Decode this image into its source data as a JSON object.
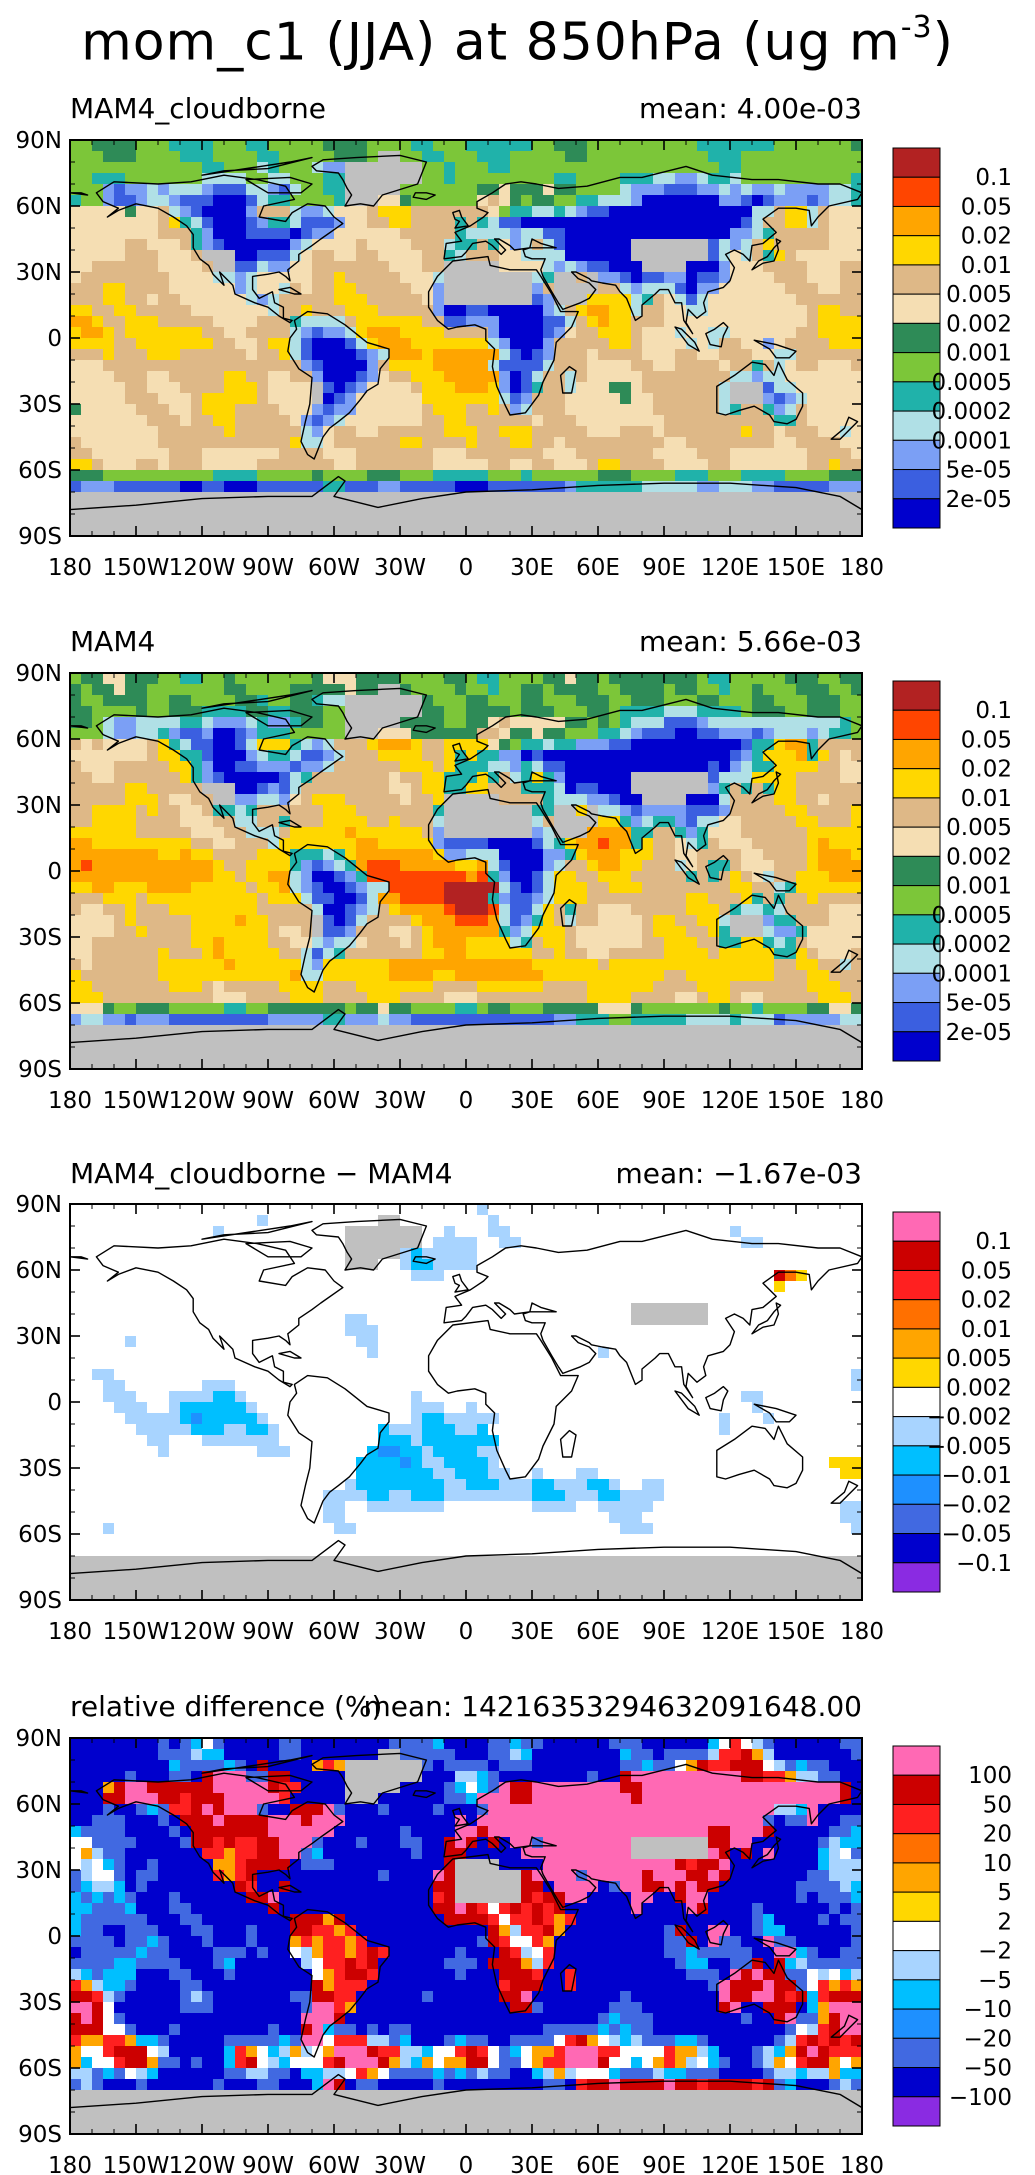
{
  "page": {
    "title": "mom_c1 (JJA) at 850hPa (ug m",
    "title_sup": "-3",
    "title_end": ")"
  },
  "colors": {
    "land_gray": "#c0c0c0",
    "coast": "#000000"
  },
  "chart_data": [
    {
      "type": "heatmap",
      "title": "MAM4_cloudborne",
      "mean_label": "mean: 4.00e-03",
      "xlim": [
        -180,
        180
      ],
      "ylim": [
        -90,
        90
      ],
      "x_ticks": [
        "180",
        "150W",
        "120W",
        "90W",
        "60W",
        "30W",
        "0",
        "30E",
        "60E",
        "90E",
        "120E",
        "150E",
        "180"
      ],
      "y_ticks": [
        "90N",
        "60N",
        "30N",
        "0",
        "30S",
        "60S",
        "90S"
      ],
      "colorbar": {
        "labels": [
          "0.1",
          "0.05",
          "0.02",
          "0.01",
          "0.005",
          "0.002",
          "0.001",
          "0.0005",
          "0.0002",
          "0.0001",
          "5e-05",
          "2e-05"
        ],
        "colors": [
          "#b22222",
          "#ff4500",
          "#ffa500",
          "#ffd700",
          "#deb887",
          "#f5deb3",
          "#2e8b57",
          "#7cc639",
          "#20b2aa",
          "#b0e0e6",
          "#7b9ff5",
          "#3b5fe0",
          "#0000cd"
        ]
      },
      "field_pattern": "abs_cb"
    },
    {
      "type": "heatmap",
      "title": "MAM4",
      "mean_label": "mean: 5.66e-03",
      "xlim": [
        -180,
        180
      ],
      "ylim": [
        -90,
        90
      ],
      "x_ticks": [
        "180",
        "150W",
        "120W",
        "90W",
        "60W",
        "30W",
        "0",
        "30E",
        "60E",
        "90E",
        "120E",
        "150E",
        "180"
      ],
      "y_ticks": [
        "90N",
        "60N",
        "30N",
        "0",
        "30S",
        "60S",
        "90S"
      ],
      "colorbar": {
        "labels": [
          "0.1",
          "0.05",
          "0.02",
          "0.01",
          "0.005",
          "0.002",
          "0.001",
          "0.0005",
          "0.0002",
          "0.0001",
          "5e-05",
          "2e-05"
        ],
        "colors": [
          "#b22222",
          "#ff4500",
          "#ffa500",
          "#ffd700",
          "#deb887",
          "#f5deb3",
          "#2e8b57",
          "#7cc639",
          "#20b2aa",
          "#b0e0e6",
          "#7b9ff5",
          "#3b5fe0",
          "#0000cd"
        ]
      },
      "field_pattern": "abs_mam4"
    },
    {
      "type": "heatmap",
      "title": "MAM4_cloudborne − MAM4",
      "mean_label": "mean: −1.67e-03",
      "xlim": [
        -180,
        180
      ],
      "ylim": [
        -90,
        90
      ],
      "x_ticks": [
        "180",
        "150W",
        "120W",
        "90W",
        "60W",
        "30W",
        "0",
        "30E",
        "60E",
        "90E",
        "120E",
        "150E",
        "180"
      ],
      "y_ticks": [
        "90N",
        "60N",
        "30N",
        "0",
        "30S",
        "60S",
        "90S"
      ],
      "colorbar": {
        "labels": [
          "0.1",
          "0.05",
          "0.02",
          "0.01",
          "0.005",
          "0.002",
          "−0.002",
          "−0.005",
          "−0.01",
          "−0.02",
          "−0.05",
          "−0.1"
        ],
        "colors": [
          "#ff69b4",
          "#cc0000",
          "#ff2020",
          "#ff7000",
          "#ffa500",
          "#ffd700",
          "#ffffff",
          "#a8d4ff",
          "#00bfff",
          "#1e90ff",
          "#4169e1",
          "#0000cd",
          "#8a2be2"
        ]
      },
      "field_pattern": "diff"
    },
    {
      "type": "heatmap",
      "title": "relative difference (%)",
      "mean_label": "mean: 14216353294632091648.00",
      "xlim": [
        -180,
        180
      ],
      "ylim": [
        -90,
        90
      ],
      "x_ticks": [
        "180",
        "150W",
        "120W",
        "90W",
        "60W",
        "30W",
        "0",
        "30E",
        "60E",
        "90E",
        "120E",
        "150E",
        "180"
      ],
      "y_ticks": [
        "90N",
        "60N",
        "30N",
        "0",
        "30S",
        "60S",
        "90S"
      ],
      "colorbar": {
        "labels": [
          "100",
          "50",
          "20",
          "10",
          "5",
          "2",
          "−2",
          "−5",
          "−10",
          "−20",
          "−50",
          "−100"
        ],
        "colors": [
          "#ff69b4",
          "#cc0000",
          "#ff2020",
          "#ff7000",
          "#ffa500",
          "#ffd700",
          "#ffffff",
          "#a8d4ff",
          "#00bfff",
          "#1e90ff",
          "#4169e1",
          "#0000cd",
          "#8a2be2"
        ]
      },
      "field_pattern": "rel"
    }
  ]
}
